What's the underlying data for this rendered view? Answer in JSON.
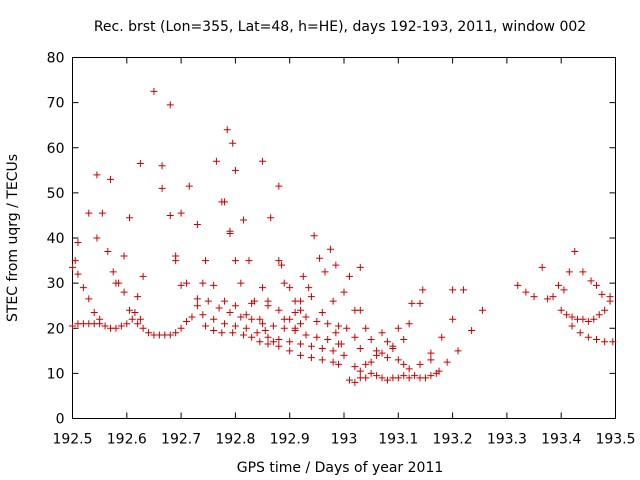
{
  "chart_data": {
    "type": "scatter",
    "title": "Rec. brst (Lon=355, Lat=48, h=HE), days 192-193, 2011, window 002",
    "xlabel": "GPS time / Days of year 2011",
    "ylabel": "STEC from uqrg / TECUs",
    "xlim": [
      192.5,
      193.5
    ],
    "ylim": [
      0,
      80
    ],
    "xticks": [
      192.5,
      192.6,
      192.7,
      192.8,
      192.9,
      193,
      193.1,
      193.2,
      193.3,
      193.4,
      193.5
    ],
    "xtick_labels": [
      "192.5",
      "192.6",
      "192.7",
      "192.8",
      "192.9",
      "193",
      "193.1",
      "193.2",
      "193.3",
      "193.4",
      "193.5"
    ],
    "yticks": [
      0,
      10,
      20,
      30,
      40,
      50,
      60,
      70,
      80
    ],
    "ytick_labels": [
      "0",
      "10",
      "20",
      "30",
      "40",
      "50",
      "60",
      "70",
      "80"
    ],
    "grid": false,
    "marker": "+",
    "marker_color": "#cc0000",
    "series": [
      {
        "name": "STEC",
        "points": [
          [
            192.5,
            20.5
          ],
          [
            192.51,
            21.0
          ],
          [
            192.52,
            21.0
          ],
          [
            192.53,
            21.0
          ],
          [
            192.54,
            21.0
          ],
          [
            192.55,
            21.0
          ],
          [
            192.56,
            20.5
          ],
          [
            192.57,
            20.0
          ],
          [
            192.58,
            20.0
          ],
          [
            192.59,
            20.5
          ],
          [
            192.6,
            21.0
          ],
          [
            192.61,
            22.0
          ],
          [
            192.62,
            21.0
          ],
          [
            192.63,
            20.0
          ],
          [
            192.64,
            19.0
          ],
          [
            192.65,
            18.5
          ],
          [
            192.66,
            18.5
          ],
          [
            192.67,
            18.5
          ],
          [
            192.68,
            18.5
          ],
          [
            192.69,
            19.0
          ],
          [
            192.7,
            20.0
          ],
          [
            192.5,
            33.5
          ],
          [
            192.505,
            35.0
          ],
          [
            192.51,
            32.0
          ],
          [
            192.52,
            29.0
          ],
          [
            192.53,
            26.5
          ],
          [
            192.54,
            23.5
          ],
          [
            192.55,
            22.0
          ],
          [
            192.51,
            39.0
          ],
          [
            192.53,
            45.5
          ],
          [
            192.545,
            40.0
          ],
          [
            192.555,
            45.5
          ],
          [
            192.565,
            37.0
          ],
          [
            192.575,
            32.5
          ],
          [
            192.585,
            30.0
          ],
          [
            192.595,
            28.0
          ],
          [
            192.605,
            24.0
          ],
          [
            192.615,
            23.5
          ],
          [
            192.625,
            22.0
          ],
          [
            192.545,
            54.0
          ],
          [
            192.57,
            53.0
          ],
          [
            192.58,
            30.0
          ],
          [
            192.595,
            36.0
          ],
          [
            192.605,
            44.5
          ],
          [
            192.62,
            27.0
          ],
          [
            192.63,
            31.5
          ],
          [
            192.625,
            56.5
          ],
          [
            192.65,
            72.5
          ],
          [
            192.665,
            56.0
          ],
          [
            192.68,
            69.5
          ],
          [
            192.665,
            51.0
          ],
          [
            192.68,
            45.0
          ],
          [
            192.69,
            36.0
          ],
          [
            192.69,
            35.0
          ],
          [
            192.7,
            45.5
          ],
          [
            192.7,
            29.5
          ],
          [
            192.71,
            30.0
          ],
          [
            192.715,
            51.5
          ],
          [
            192.73,
            43.0
          ],
          [
            192.745,
            35.0
          ],
          [
            192.765,
            57.0
          ],
          [
            192.775,
            48.0
          ],
          [
            192.78,
            48.0
          ],
          [
            192.79,
            41.5
          ],
          [
            192.79,
            41.0
          ],
          [
            192.8,
            35.0
          ],
          [
            192.81,
            30.0
          ],
          [
            192.785,
            64.0
          ],
          [
            192.795,
            61.0
          ],
          [
            192.8,
            55.0
          ],
          [
            192.815,
            44.0
          ],
          [
            192.825,
            35.0
          ],
          [
            192.835,
            26.0
          ],
          [
            192.845,
            22.0
          ],
          [
            192.855,
            19.5
          ],
          [
            192.87,
            17.0
          ],
          [
            192.82,
            23.0
          ],
          [
            192.85,
            57.0
          ],
          [
            192.865,
            44.5
          ],
          [
            192.88,
            51.5
          ],
          [
            192.88,
            35.0
          ],
          [
            192.885,
            34.0
          ],
          [
            192.89,
            30.0
          ],
          [
            192.9,
            22.0
          ],
          [
            192.91,
            20.0
          ],
          [
            192.92,
            21.0
          ],
          [
            192.925,
            31.5
          ],
          [
            192.91,
            26.0
          ],
          [
            192.92,
            24.0
          ],
          [
            192.935,
            29.0
          ],
          [
            192.945,
            40.5
          ],
          [
            192.955,
            35.5
          ],
          [
            192.965,
            32.5
          ],
          [
            192.975,
            37.5
          ],
          [
            192.985,
            34.0
          ],
          [
            193.0,
            28.0
          ],
          [
            193.01,
            31.5
          ],
          [
            193.02,
            24.0
          ],
          [
            193.03,
            24.0
          ],
          [
            192.71,
            21.5
          ],
          [
            192.73,
            25.0
          ],
          [
            192.745,
            20.5
          ],
          [
            192.76,
            19.5
          ],
          [
            192.775,
            19.0
          ],
          [
            192.795,
            19.0
          ],
          [
            192.815,
            18.5
          ],
          [
            192.83,
            18.0
          ],
          [
            192.845,
            17.0
          ],
          [
            192.86,
            16.5
          ],
          [
            192.88,
            16.0
          ],
          [
            192.9,
            15.0
          ],
          [
            192.92,
            14.0
          ],
          [
            192.94,
            13.5
          ],
          [
            192.96,
            13.0
          ],
          [
            192.98,
            12.5
          ],
          [
            192.99,
            12.0
          ],
          [
            192.72,
            22.5
          ],
          [
            192.74,
            23.0
          ],
          [
            192.76,
            22.0
          ],
          [
            192.78,
            21.0
          ],
          [
            192.8,
            20.5
          ],
          [
            192.82,
            20.0
          ],
          [
            192.84,
            19.0
          ],
          [
            192.86,
            18.0
          ],
          [
            192.88,
            17.5
          ],
          [
            192.9,
            17.0
          ],
          [
            192.92,
            16.5
          ],
          [
            192.94,
            16.0
          ],
          [
            192.96,
            15.5
          ],
          [
            192.98,
            15.0
          ],
          [
            193.0,
            14.0
          ],
          [
            192.73,
            26.5
          ],
          [
            192.75,
            26.0
          ],
          [
            192.77,
            24.5
          ],
          [
            192.79,
            23.5
          ],
          [
            192.81,
            22.5
          ],
          [
            192.83,
            22.0
          ],
          [
            192.85,
            21.0
          ],
          [
            192.87,
            20.5
          ],
          [
            192.89,
            20.0
          ],
          [
            192.91,
            19.5
          ],
          [
            192.93,
            18.5
          ],
          [
            192.95,
            18.0
          ],
          [
            192.97,
            17.5
          ],
          [
            192.99,
            16.5
          ],
          [
            192.74,
            30.0
          ],
          [
            192.76,
            29.5
          ],
          [
            192.78,
            26.0
          ],
          [
            192.8,
            25.0
          ],
          [
            192.83,
            25.5
          ],
          [
            192.85,
            29.0
          ],
          [
            192.86,
            25.0
          ],
          [
            192.89,
            22.0
          ],
          [
            192.91,
            23.5
          ],
          [
            192.93,
            22.5
          ],
          [
            192.95,
            21.5
          ],
          [
            192.97,
            21.0
          ],
          [
            192.99,
            20.5
          ],
          [
            192.86,
            26.0
          ],
          [
            192.88,
            24.0
          ],
          [
            192.9,
            29.0
          ],
          [
            192.92,
            26.0
          ],
          [
            192.94,
            27.0
          ],
          [
            192.96,
            23.5
          ],
          [
            192.98,
            26.0
          ],
          [
            192.985,
            19.0
          ],
          [
            192.995,
            16.5
          ],
          [
            193.005,
            20.0
          ],
          [
            193.02,
            18.0
          ],
          [
            193.03,
            15.5
          ],
          [
            193.04,
            20.0
          ],
          [
            193.05,
            17.5
          ],
          [
            193.06,
            15.0
          ],
          [
            193.07,
            19.0
          ],
          [
            193.08,
            17.0
          ],
          [
            193.09,
            16.0
          ],
          [
            193.1,
            20.0
          ],
          [
            193.11,
            17.5
          ],
          [
            193.12,
            21.0
          ],
          [
            193.14,
            25.5
          ],
          [
            193.16,
            14.5
          ],
          [
            193.18,
            18.0
          ],
          [
            193.2,
            22.0
          ],
          [
            193.22,
            28.5
          ],
          [
            193.02,
            11.5
          ],
          [
            193.03,
            10.5
          ],
          [
            193.04,
            12.0
          ],
          [
            193.05,
            12.5
          ],
          [
            193.06,
            14.0
          ],
          [
            193.07,
            14.5
          ],
          [
            193.08,
            13.5
          ],
          [
            193.09,
            15.5
          ],
          [
            193.1,
            13.0
          ],
          [
            193.11,
            12.0
          ],
          [
            193.12,
            11.0
          ],
          [
            193.14,
            12.0
          ],
          [
            193.16,
            13.0
          ],
          [
            193.175,
            10.5
          ],
          [
            193.19,
            12.5
          ],
          [
            193.21,
            15.0
          ],
          [
            193.235,
            19.5
          ],
          [
            193.01,
            8.5
          ],
          [
            193.02,
            8.0
          ],
          [
            193.03,
            9.0
          ],
          [
            193.04,
            9.0
          ],
          [
            193.05,
            10.0
          ],
          [
            193.06,
            9.5
          ],
          [
            193.07,
            9.0
          ],
          [
            193.08,
            8.5
          ],
          [
            193.09,
            9.0
          ],
          [
            193.1,
            9.0
          ],
          [
            193.11,
            9.5
          ],
          [
            193.12,
            9.0
          ],
          [
            193.13,
            9.5
          ],
          [
            193.14,
            9.0
          ],
          [
            193.15,
            9.0
          ],
          [
            193.16,
            9.5
          ],
          [
            193.17,
            10.0
          ],
          [
            193.03,
            33.5
          ],
          [
            193.125,
            25.5
          ],
          [
            193.145,
            28.5
          ],
          [
            193.2,
            28.5
          ],
          [
            193.255,
            24.0
          ],
          [
            193.32,
            29.5
          ],
          [
            193.335,
            28.0
          ],
          [
            193.35,
            27.0
          ],
          [
            193.365,
            33.5
          ],
          [
            193.375,
            26.5
          ],
          [
            193.385,
            27.0
          ],
          [
            193.395,
            29.5
          ],
          [
            193.405,
            28.5
          ],
          [
            193.415,
            32.5
          ],
          [
            193.425,
            37.0
          ],
          [
            193.44,
            32.5
          ],
          [
            193.455,
            30.5
          ],
          [
            193.465,
            29.5
          ],
          [
            193.475,
            27.5
          ],
          [
            193.49,
            27.0
          ],
          [
            193.4,
            24.0
          ],
          [
            193.41,
            23.0
          ],
          [
            193.42,
            22.5
          ],
          [
            193.43,
            22.0
          ],
          [
            193.44,
            22.0
          ],
          [
            193.45,
            21.5
          ],
          [
            193.46,
            22.0
          ],
          [
            193.47,
            23.0
          ],
          [
            193.48,
            24.0
          ],
          [
            193.49,
            26.0
          ],
          [
            193.42,
            20.5
          ],
          [
            193.435,
            19.0
          ],
          [
            193.45,
            18.0
          ],
          [
            193.465,
            17.5
          ],
          [
            193.48,
            17.0
          ],
          [
            193.495,
            17.0
          ]
        ]
      }
    ]
  }
}
